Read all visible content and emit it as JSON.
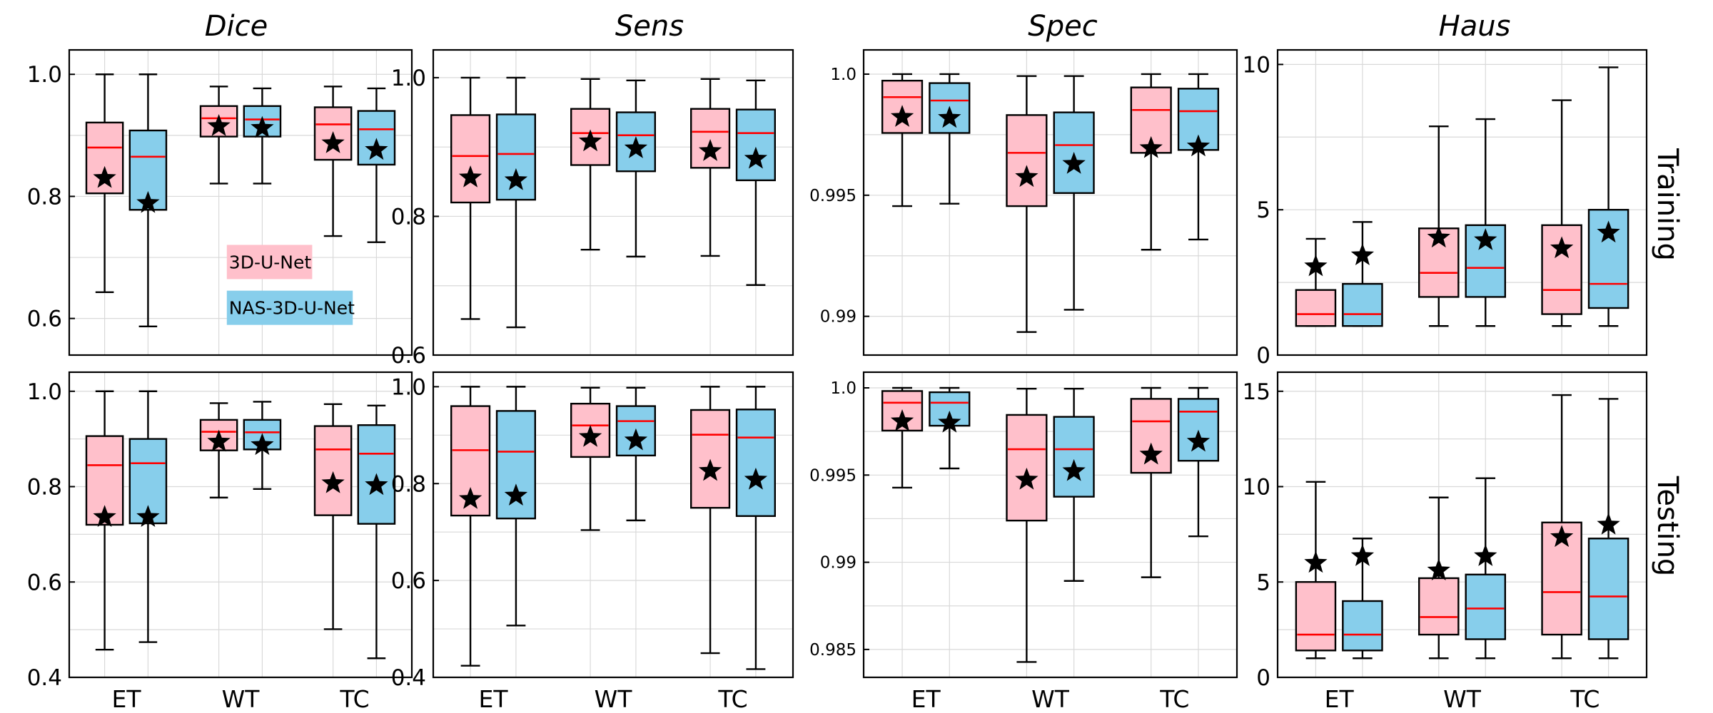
{
  "columns": [
    "Dice",
    "Sens",
    "Spec",
    "Haus"
  ],
  "rows": [
    "Training",
    "Testing"
  ],
  "colors": {
    "3D-U-Net": "#ffc0cb",
    "NAS-3D-U-Net": "#87ceeb",
    "median": "#ff0000"
  },
  "chart_data": [
    {
      "type": "box",
      "metric": "Dice",
      "split": "Training",
      "categories": [
        "ET",
        "WT",
        "TC"
      ],
      "ylim": [
        0.54,
        1.04
      ],
      "yticks": [
        0.6,
        0.8,
        1.0
      ],
      "ytick_labels": [
        "0.6",
        "0.8",
        "1.0"
      ],
      "grid": true,
      "legend": {
        "placement": "lower-center",
        "entries": [
          "3D-U-Net",
          "NAS-3D-U-Net"
        ]
      },
      "series": [
        {
          "name": "3D-U-Net",
          "boxes": [
            {
              "min": 0.643,
              "q1": 0.805,
              "median": 0.88,
              "q3": 0.921,
              "max": 1.0,
              "mean": 0.83
            },
            {
              "min": 0.821,
              "q1": 0.898,
              "median": 0.928,
              "q3": 0.948,
              "max": 0.98,
              "mean": 0.915
            },
            {
              "min": 0.735,
              "q1": 0.86,
              "median": 0.918,
              "q3": 0.946,
              "max": 0.98,
              "mean": 0.887
            }
          ]
        },
        {
          "name": "NAS-3D-U-Net",
          "boxes": [
            {
              "min": 0.587,
              "q1": 0.778,
              "median": 0.865,
              "q3": 0.908,
              "max": 1.0,
              "mean": 0.789
            },
            {
              "min": 0.821,
              "q1": 0.898,
              "median": 0.926,
              "q3": 0.948,
              "max": 0.977,
              "mean": 0.912
            },
            {
              "min": 0.725,
              "q1": 0.852,
              "median": 0.91,
              "q3": 0.94,
              "max": 0.977,
              "mean": 0.876
            }
          ]
        }
      ]
    },
    {
      "type": "box",
      "metric": "Sens",
      "split": "Training",
      "categories": [
        "ET",
        "WT",
        "TC"
      ],
      "ylim": [
        0.6,
        1.04
      ],
      "yticks": [
        0.6,
        0.8,
        1.0
      ],
      "ytick_labels": [
        "0.6",
        "0.8",
        "1.0"
      ],
      "grid": true,
      "series": [
        {
          "name": "3D-U-Net",
          "boxes": [
            {
              "min": 0.652,
              "q1": 0.82,
              "median": 0.887,
              "q3": 0.946,
              "max": 1.0,
              "mean": 0.856
            },
            {
              "min": 0.752,
              "q1": 0.874,
              "median": 0.92,
              "q3": 0.955,
              "max": 0.998,
              "mean": 0.908
            },
            {
              "min": 0.743,
              "q1": 0.87,
              "median": 0.922,
              "q3": 0.955,
              "max": 0.998,
              "mean": 0.894
            }
          ]
        },
        {
          "name": "NAS-3D-U-Net",
          "boxes": [
            {
              "min": 0.64,
              "q1": 0.824,
              "median": 0.89,
              "q3": 0.947,
              "max": 1.0,
              "mean": 0.852
            },
            {
              "min": 0.742,
              "q1": 0.865,
              "median": 0.917,
              "q3": 0.95,
              "max": 0.996,
              "mean": 0.898
            },
            {
              "min": 0.701,
              "q1": 0.852,
              "median": 0.92,
              "q3": 0.954,
              "max": 0.996,
              "mean": 0.883
            }
          ]
        }
      ]
    },
    {
      "type": "box",
      "metric": "Spec",
      "split": "Training",
      "categories": [
        "ET",
        "WT",
        "TC"
      ],
      "ylim": [
        0.9884,
        1.001
      ],
      "yticks": [
        0.99,
        0.995,
        1.0
      ],
      "ytick_labels": [
        "0.99",
        "0.995",
        "1.0"
      ],
      "grid": true,
      "series": [
        {
          "name": "3D-U-Net",
          "boxes": [
            {
              "min": 0.99455,
              "q1": 0.99757,
              "median": 0.99905,
              "q3": 0.99973,
              "max": 1.0,
              "mean": 0.99823
            },
            {
              "min": 0.98935,
              "q1": 0.99455,
              "median": 0.99675,
              "q3": 0.99831,
              "max": 0.99992,
              "mean": 0.99575
            },
            {
              "min": 0.99275,
              "q1": 0.99675,
              "median": 0.99852,
              "q3": 0.99945,
              "max": 1.0,
              "mean": 0.99694
            }
          ]
        },
        {
          "name": "NAS-3D-U-Net",
          "boxes": [
            {
              "min": 0.99465,
              "q1": 0.99757,
              "median": 0.99891,
              "q3": 0.99963,
              "max": 1.0,
              "mean": 0.99819
            },
            {
              "min": 0.99027,
              "q1": 0.99509,
              "median": 0.99707,
              "q3": 0.99842,
              "max": 0.99992,
              "mean": 0.99629
            },
            {
              "min": 0.99317,
              "q1": 0.99687,
              "median": 0.99847,
              "q3": 0.9994,
              "max": 1.0,
              "mean": 0.99701
            }
          ]
        }
      ]
    },
    {
      "type": "box",
      "metric": "Haus",
      "split": "Training",
      "categories": [
        "ET",
        "WT",
        "TC"
      ],
      "ylim": [
        0,
        10.5
      ],
      "yticks": [
        0,
        5,
        10
      ],
      "ytick_labels": [
        "0",
        "5",
        "10"
      ],
      "grid": true,
      "series": [
        {
          "name": "3D-U-Net",
          "boxes": [
            {
              "min": 1.0,
              "q1": 1.0,
              "median": 1.41,
              "q3": 2.24,
              "max": 4.0,
              "mean": 3.05
            },
            {
              "min": 1.0,
              "q1": 2.0,
              "median": 2.83,
              "q3": 4.36,
              "max": 7.87,
              "mean": 4.04
            },
            {
              "min": 1.0,
              "q1": 1.41,
              "median": 2.24,
              "q3": 4.47,
              "max": 8.77,
              "mean": 3.67
            }
          ]
        },
        {
          "name": "NAS-3D-U-Net",
          "boxes": [
            {
              "min": 1.0,
              "q1": 1.0,
              "median": 1.41,
              "q3": 2.45,
              "max": 4.58,
              "mean": 3.43
            },
            {
              "min": 1.0,
              "q1": 2.0,
              "median": 3.0,
              "q3": 4.47,
              "max": 8.12,
              "mean": 3.95
            },
            {
              "min": 1.0,
              "q1": 1.62,
              "median": 2.45,
              "q3": 5.0,
              "max": 9.9,
              "mean": 4.21
            }
          ]
        }
      ]
    },
    {
      "type": "box",
      "metric": "Dice",
      "split": "Testing",
      "categories": [
        "ET",
        "WT",
        "TC"
      ],
      "ylim": [
        0.4,
        1.04
      ],
      "yticks": [
        0.4,
        0.6,
        0.8,
        1.0
      ],
      "ytick_labels": [
        "0.4",
        "0.6",
        "0.8",
        "1.0"
      ],
      "grid": true,
      "series": [
        {
          "name": "3D-U-Net",
          "boxes": [
            {
              "min": 0.458,
              "q1": 0.72,
              "median": 0.845,
              "q3": 0.906,
              "max": 1.0,
              "mean": 0.736
            },
            {
              "min": 0.777,
              "q1": 0.876,
              "median": 0.915,
              "q3": 0.94,
              "max": 0.975,
              "mean": 0.894
            },
            {
              "min": 0.501,
              "q1": 0.74,
              "median": 0.878,
              "q3": 0.927,
              "max": 0.973,
              "mean": 0.807
            }
          ]
        },
        {
          "name": "NAS-3D-U-Net",
          "boxes": [
            {
              "min": 0.474,
              "q1": 0.723,
              "median": 0.849,
              "q3": 0.9,
              "max": 1.0,
              "mean": 0.736
            },
            {
              "min": 0.795,
              "q1": 0.878,
              "median": 0.914,
              "q3": 0.94,
              "max": 0.978,
              "mean": 0.887
            },
            {
              "min": 0.44,
              "q1": 0.722,
              "median": 0.869,
              "q3": 0.929,
              "max": 0.97,
              "mean": 0.803
            }
          ]
        }
      ]
    },
    {
      "type": "box",
      "metric": "Sens",
      "split": "Testing",
      "categories": [
        "ET",
        "WT",
        "TC"
      ],
      "ylim": [
        0.4,
        1.03
      ],
      "yticks": [
        0.4,
        0.6,
        0.8,
        1.0
      ],
      "ytick_labels": [
        "0.4",
        "0.6",
        "0.8",
        "1.0"
      ],
      "grid": true,
      "series": [
        {
          "name": "3D-U-Net",
          "boxes": [
            {
              "min": 0.424,
              "q1": 0.734,
              "median": 0.869,
              "q3": 0.96,
              "max": 1.0,
              "mean": 0.768
            },
            {
              "min": 0.704,
              "q1": 0.855,
              "median": 0.92,
              "q3": 0.965,
              "max": 0.998,
              "mean": 0.896
            },
            {
              "min": 0.45,
              "q1": 0.75,
              "median": 0.901,
              "q3": 0.952,
              "max": 1.0,
              "mean": 0.826
            }
          ]
        },
        {
          "name": "NAS-3D-U-Net",
          "boxes": [
            {
              "min": 0.507,
              "q1": 0.728,
              "median": 0.866,
              "q3": 0.95,
              "max": 1.0,
              "mean": 0.775
            },
            {
              "min": 0.724,
              "q1": 0.858,
              "median": 0.929,
              "q3": 0.96,
              "max": 0.998,
              "mean": 0.889
            },
            {
              "min": 0.417,
              "q1": 0.733,
              "median": 0.895,
              "q3": 0.953,
              "max": 1.0,
              "mean": 0.808
            }
          ]
        }
      ]
    },
    {
      "type": "box",
      "metric": "Spec",
      "split": "Testing",
      "categories": [
        "ET",
        "WT",
        "TC"
      ],
      "ylim": [
        0.9834,
        1.0009
      ],
      "yticks": [
        0.985,
        0.99,
        0.995,
        1.0
      ],
      "ytick_labels": [
        "0.985",
        "0.99",
        "0.995",
        "1.0"
      ],
      "grid": true,
      "series": [
        {
          "name": "3D-U-Net",
          "boxes": [
            {
              "min": 0.99428,
              "q1": 0.99755,
              "median": 0.99915,
              "q3": 0.99982,
              "max": 1.0,
              "mean": 0.99808
            },
            {
              "min": 0.98428,
              "q1": 0.99239,
              "median": 0.99648,
              "q3": 0.99845,
              "max": 0.99995,
              "mean": 0.99473
            },
            {
              "min": 0.98914,
              "q1": 0.99513,
              "median": 0.99808,
              "q3": 0.99937,
              "max": 1.0,
              "mean": 0.99617
            }
          ]
        },
        {
          "name": "NAS-3D-U-Net",
          "boxes": [
            {
              "min": 0.99538,
              "q1": 0.99783,
              "median": 0.99915,
              "q3": 0.99975,
              "max": 1.0,
              "mean": 0.998
            },
            {
              "min": 0.98893,
              "q1": 0.99376,
              "median": 0.99648,
              "q3": 0.99834,
              "max": 0.99995,
              "mean": 0.99522
            },
            {
              "min": 0.99149,
              "q1": 0.99582,
              "median": 0.99864,
              "q3": 0.99937,
              "max": 1.0,
              "mean": 0.99691
            }
          ]
        }
      ]
    },
    {
      "type": "box",
      "metric": "Haus",
      "split": "Testing",
      "categories": [
        "ET",
        "WT",
        "TC"
      ],
      "ylim": [
        0,
        16
      ],
      "yticks": [
        0,
        5,
        10,
        15
      ],
      "ytick_labels": [
        "0",
        "5",
        "10",
        "15"
      ],
      "grid": true,
      "series": [
        {
          "name": "3D-U-Net",
          "boxes": [
            {
              "min": 1.0,
              "q1": 1.41,
              "median": 2.24,
              "q3": 5.0,
              "max": 10.25,
              "mean": 6.0
            },
            {
              "min": 1.0,
              "q1": 2.24,
              "median": 3.16,
              "q3": 5.2,
              "max": 9.43,
              "mean": 5.6
            },
            {
              "min": 1.0,
              "q1": 2.24,
              "median": 4.47,
              "q3": 8.12,
              "max": 14.8,
              "mean": 7.35
            }
          ]
        },
        {
          "name": "NAS-3D-U-Net",
          "boxes": [
            {
              "min": 1.0,
              "q1": 1.41,
              "median": 2.24,
              "q3": 4.0,
              "max": 7.28,
              "mean": 6.35
            },
            {
              "min": 1.0,
              "q1": 2.0,
              "median": 3.61,
              "q3": 5.39,
              "max": 10.44,
              "mean": 6.35
            },
            {
              "min": 1.0,
              "q1": 2.0,
              "median": 4.24,
              "q3": 7.28,
              "max": 14.6,
              "mean": 8.0
            }
          ]
        }
      ]
    }
  ]
}
